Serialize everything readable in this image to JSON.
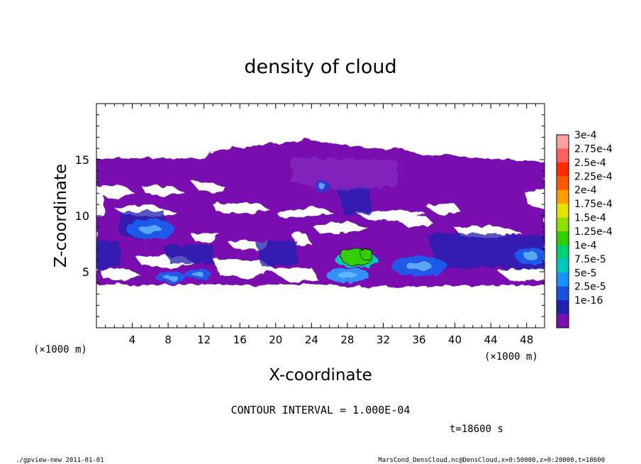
{
  "chart_data": {
    "type": "heatmap",
    "title": "density of cloud",
    "xlabel": "X-coordinate",
    "ylabel": "Z-coordinate",
    "x_unit_left": "(×1000 m)",
    "x_unit_right": "(×1000 m)",
    "xlim": [
      0,
      50
    ],
    "ylim": [
      0,
      20
    ],
    "xticks": [
      4,
      8,
      12,
      16,
      20,
      24,
      28,
      32,
      36,
      40,
      44,
      48
    ],
    "yticks": [
      5,
      10,
      15
    ],
    "contour_interval": "CONTOUR INTERVAL = 1.000E-04",
    "time": "t=18600 s",
    "footer_left": "./gpview-new  2011-01-01",
    "footer_right": "MarsCond_DensCloud.nc@DensCloud,x=0:50000,z=0:20000,t=18600",
    "colorbar": {
      "labels": [
        "3e-4",
        "2.75e-4",
        "2.5e-4",
        "2.25e-4",
        "2e-4",
        "1.75e-4",
        "1.5e-4",
        "1.25e-4",
        "1e-4",
        "7.5e-5",
        "5e-5",
        "2.5e-5",
        "1e-16"
      ],
      "colors": [
        "#ffa0a0",
        "#ff6060",
        "#ff2a00",
        "#ff5a00",
        "#ffa000",
        "#e8e000",
        "#90e000",
        "#30d000",
        "#00d070",
        "#00c8c0",
        "#1890ff",
        "#1a50e0",
        "#2020b0",
        "#7a10b0"
      ]
    },
    "field": {
      "background_band_z": [
        4,
        15
      ],
      "dome_top_z": 16.5,
      "dome_x": [
        12,
        32
      ],
      "blue_patches": [
        {
          "x": 6,
          "z": 8.8,
          "value": "5e-5"
        },
        {
          "x": 8.3,
          "z": 4.5,
          "value": "5e-5"
        },
        {
          "x": 11.3,
          "z": 4.8,
          "value": "5e-5"
        },
        {
          "x": 28,
          "z": 4.7,
          "value": "7.5e-5"
        },
        {
          "x": 36,
          "z": 5.5,
          "value": "5e-5"
        },
        {
          "x": 48.5,
          "z": 6.4,
          "value": "5e-5"
        },
        {
          "x": 25.2,
          "z": 12.6,
          "value": "2.5e-5"
        }
      ],
      "green_peak": {
        "x": 29,
        "z": 6.3,
        "value": "1.5e-4"
      }
    }
  }
}
